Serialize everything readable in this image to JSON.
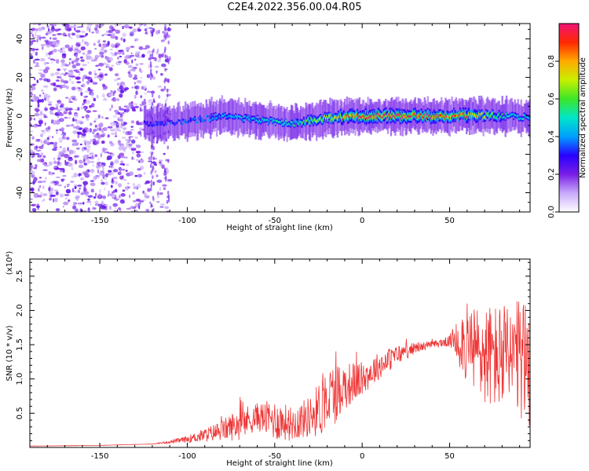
{
  "title": "C2E4.2022.356.00.04.R05",
  "colors": {
    "spectrogram_scatter": "#7a1fe0",
    "snr_line": "#ee3333",
    "axis": "#000000"
  },
  "chart_data": [
    {
      "type": "heatmap",
      "title": "C2E4.2022.356.00.04.R05",
      "xlabel": "Height of straight line (km)",
      "ylabel": "Frequency (Hz)",
      "xlim": [
        -190,
        96
      ],
      "ylim": [
        -50,
        48
      ],
      "xticks": [
        -150,
        -100,
        -50,
        0,
        50
      ],
      "yticks": [
        -40,
        -20,
        0,
        20,
        40
      ],
      "colorbar": {
        "label": "Normalized spectral amplitude",
        "range": [
          0.0,
          1.0
        ],
        "ticks": [
          "0.0",
          "0.2",
          "0.4",
          "0.6",
          "0.8"
        ],
        "colormap": "hsv-reversed"
      },
      "signal_band": {
        "description": "narrow band near 0 Hz",
        "x": [
          -120,
          -100,
          -80,
          -60,
          -40,
          -20,
          0,
          20,
          40,
          60,
          80,
          96
        ],
        "center_freq_hz": [
          -4,
          -3,
          0,
          -2,
          -4,
          -1,
          0,
          0,
          0,
          0,
          0,
          -1
        ],
        "peak_amplitude": [
          0.3,
          0.35,
          0.4,
          0.45,
          0.5,
          0.7,
          0.95,
          0.95,
          0.9,
          0.85,
          0.5,
          0.45
        ]
      },
      "noise_region": {
        "x_range": [
          -190,
          -110
        ],
        "amplitude": 0.2
      }
    },
    {
      "type": "line",
      "xlabel": "Height of straight line (km)",
      "ylabel": "SNR (10 * v/v)",
      "y_multiplier": "(x10⁴)",
      "xlim": [
        -190,
        96
      ],
      "ylim": [
        0,
        2.75
      ],
      "xticks": [
        -150,
        -100,
        -50,
        0,
        50
      ],
      "yticks": [
        0.5,
        1.0,
        1.5,
        2.0,
        2.5
      ],
      "yticklabels": [
        "0.5",
        "1.0",
        "1.5",
        "2.0",
        "2.5"
      ],
      "series": [
        {
          "x": [
            -190,
            -150,
            -120,
            -110,
            -100,
            -90,
            -80,
            -75,
            -70,
            -60,
            -50,
            -40,
            -30,
            -25,
            -20,
            -15,
            -10,
            -5,
            0,
            10,
            20,
            30,
            40,
            50,
            55,
            60,
            65,
            70,
            80,
            90,
            96
          ],
          "y": [
            0.02,
            0.03,
            0.05,
            0.08,
            0.12,
            0.18,
            0.25,
            0.3,
            0.35,
            0.45,
            0.4,
            0.35,
            0.45,
            0.55,
            0.7,
            0.8,
            0.9,
            0.95,
            1.0,
            1.2,
            1.35,
            1.45,
            1.5,
            1.55,
            1.6,
            1.5,
            1.4,
            1.35,
            1.3,
            1.25,
            1.2
          ],
          "jitter": [
            0.0,
            0.0,
            0.0,
            0.02,
            0.05,
            0.1,
            0.15,
            0.2,
            0.25,
            0.2,
            0.3,
            0.25,
            0.3,
            0.4,
            0.5,
            0.45,
            0.35,
            0.3,
            0.25,
            0.2,
            0.15,
            0.08,
            0.05,
            0.08,
            0.4,
            0.6,
            0.7,
            0.75,
            0.8,
            0.9,
            0.9
          ]
        }
      ]
    }
  ]
}
